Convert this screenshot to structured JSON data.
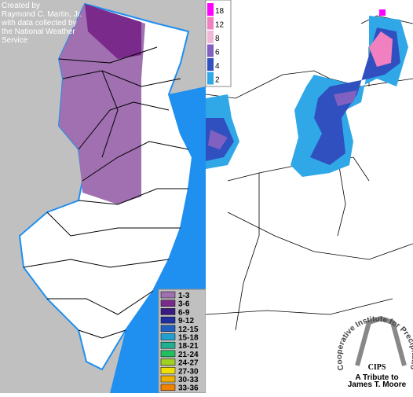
{
  "credit": {
    "lines": [
      "Created by",
      "Raymond C. Martin, Jr.",
      "with data collected by",
      "the National Weather",
      "Service"
    ]
  },
  "nj_legend": {
    "items": [
      {
        "label": "1-3",
        "color": "#a070b0"
      },
      {
        "label": "3-6",
        "color": "#7a2a8a"
      },
      {
        "label": "6-9",
        "color": "#3a1a80"
      },
      {
        "label": "9-12",
        "color": "#2030a0"
      },
      {
        "label": "12-15",
        "color": "#2060c0"
      },
      {
        "label": "15-18",
        "color": "#20a0d0"
      },
      {
        "label": "18-21",
        "color": "#20b090"
      },
      {
        "label": "21-24",
        "color": "#20c060"
      },
      {
        "label": "24-27",
        "color": "#a0d020"
      },
      {
        "label": "27-30",
        "color": "#f0e000"
      },
      {
        "label": "30-33",
        "color": "#f0b000"
      },
      {
        "label": "33-36",
        "color": "#f08000"
      }
    ]
  },
  "regional_legend": {
    "items": [
      {
        "value": 18,
        "color": "#ff00ff"
      },
      {
        "value": 12,
        "color": "#f080c0"
      },
      {
        "value": 8,
        "color": "#f0b8d8"
      },
      {
        "value": 6,
        "color": "#8060c0"
      },
      {
        "value": 4,
        "color": "#3050c0"
      },
      {
        "value": 2,
        "color": "#30a8e8"
      }
    ]
  },
  "logo": {
    "arc": "Cooperative Institute for Precipitation Systems",
    "name": "CIPS",
    "tribute": [
      "A Tribute to",
      "James T. Moore"
    ]
  }
}
